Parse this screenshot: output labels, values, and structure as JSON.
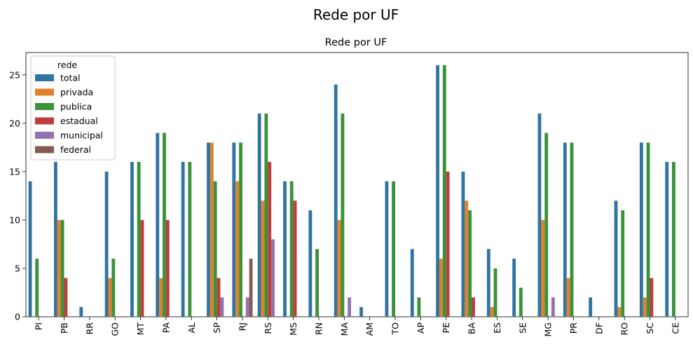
{
  "figure": {
    "suptitle": "Rede por UF"
  },
  "chart_data": {
    "type": "bar",
    "title": "Rede por UF",
    "xlabel": "",
    "ylabel": "",
    "ylim": [
      0,
      27.3
    ],
    "yticks": [
      0,
      5,
      10,
      15,
      20,
      25
    ],
    "categories": [
      "PI",
      "PB",
      "RR",
      "GO",
      "MT",
      "PA",
      "AL",
      "SP",
      "RJ",
      "RS",
      "MS",
      "RN",
      "MA",
      "AM",
      "TO",
      "AP",
      "PE",
      "BA",
      "ES",
      "SE",
      "MG",
      "PR",
      "DF",
      "RO",
      "SC",
      "CE"
    ],
    "legend": {
      "title": "rede",
      "position": "upper-left"
    },
    "series": [
      {
        "name": "total",
        "color": "#3274a1",
        "values": [
          14,
          16,
          1,
          15,
          16,
          19,
          16,
          18,
          18,
          21,
          14,
          11,
          24,
          1,
          14,
          7,
          26,
          15,
          7,
          6,
          21,
          18,
          2,
          12,
          18,
          16
        ]
      },
      {
        "name": "privada",
        "color": "#e1812c",
        "values": [
          0,
          10,
          0,
          4,
          0,
          4,
          0,
          18,
          14,
          12,
          0,
          0,
          10,
          0,
          0,
          0,
          6,
          12,
          1,
          0,
          10,
          4,
          0,
          1,
          2,
          0
        ]
      },
      {
        "name": "publica",
        "color": "#3a923a",
        "values": [
          6,
          10,
          0,
          6,
          16,
          19,
          16,
          14,
          18,
          21,
          14,
          7,
          21,
          0,
          14,
          2,
          26,
          11,
          5,
          3,
          19,
          18,
          0,
          11,
          18,
          16
        ]
      },
      {
        "name": "estadual",
        "color": "#c03d3e",
        "values": [
          0,
          4,
          0,
          0,
          10,
          10,
          0,
          4,
          0,
          16,
          12,
          0,
          0,
          0,
          0,
          0,
          15,
          2,
          0,
          0,
          0,
          0,
          0,
          0,
          4,
          0
        ]
      },
      {
        "name": "municipal",
        "color": "#9372b2",
        "values": [
          0,
          0,
          0,
          0,
          0,
          0,
          0,
          2,
          2,
          8,
          0,
          0,
          2,
          0,
          0,
          0,
          0,
          0,
          0,
          0,
          2,
          0,
          0,
          0,
          0,
          0
        ]
      },
      {
        "name": "federal",
        "color": "#845b53",
        "values": [
          0,
          0,
          0,
          0,
          0,
          0,
          0,
          0,
          6,
          0,
          0,
          0,
          0,
          0,
          0,
          0,
          0,
          0,
          0,
          0,
          0,
          0,
          0,
          0,
          0,
          0
        ]
      }
    ]
  }
}
